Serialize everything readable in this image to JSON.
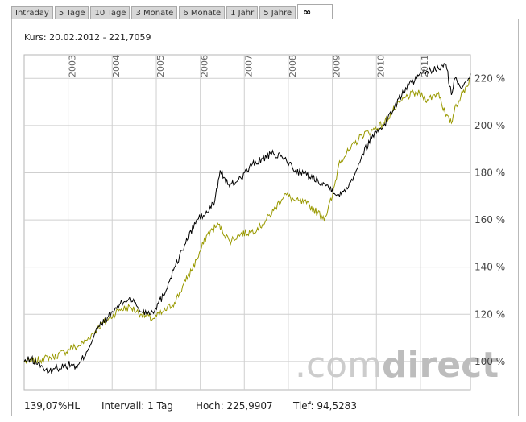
{
  "tabs": [
    {
      "label": "Intraday",
      "active": false
    },
    {
      "label": "5 Tage",
      "active": false
    },
    {
      "label": "10 Tage",
      "active": false
    },
    {
      "label": "3 Monate",
      "active": false
    },
    {
      "label": "6 Monate",
      "active": false
    },
    {
      "label": "1 Jahr",
      "active": false
    },
    {
      "label": "5 Jahre",
      "active": false
    },
    {
      "label": "∞",
      "active": true
    }
  ],
  "header": {
    "kurs": "Kurs: 20.02.2012 - 221,7059"
  },
  "footer": {
    "change": "139,07%HL",
    "interval": "Intervall: 1 Tag",
    "high": "Hoch: 225,9907",
    "low": "Tief: 94,5283"
  },
  "watermark": {
    "text_light": ".com",
    "text_dark": "direct"
  },
  "colors": {
    "series1": "#000000",
    "series2": "#999900",
    "grid": "#cfcfcf",
    "axis_text": "#444444",
    "watermark": "#cccccc"
  },
  "chart_data": {
    "type": "line",
    "x_axis": {
      "type": "date",
      "range": [
        "2002-01-01",
        "2012-02-20"
      ],
      "tick_labels": [
        "2003",
        "2004",
        "2005",
        "2006",
        "2007",
        "2008",
        "2009",
        "2010",
        "2011"
      ],
      "label_orientation": "vertical"
    },
    "y_axis": {
      "range": [
        88,
        230
      ],
      "ticks": [
        100,
        120,
        140,
        160,
        180,
        200,
        220
      ],
      "tick_labels": [
        "100 %",
        "120 %",
        "140 %",
        "160 %",
        "180 %",
        "200 %",
        "220 %"
      ],
      "position": "right"
    },
    "grid": true,
    "series": [
      {
        "color": "#000000",
        "x": [
          "2002-01-01",
          "2002-03-01",
          "2002-06-01",
          "2002-07-15",
          "2002-09-01",
          "2002-12-01",
          "2003-02-01",
          "2003-03-15",
          "2003-06-01",
          "2003-09-01",
          "2003-12-01",
          "2004-03-01",
          "2004-06-01",
          "2004-09-01",
          "2004-12-01",
          "2005-03-01",
          "2005-06-01",
          "2005-09-01",
          "2005-12-01",
          "2006-03-01",
          "2006-05-01",
          "2006-06-15",
          "2006-09-01",
          "2006-12-01",
          "2007-03-01",
          "2007-06-01",
          "2007-09-01",
          "2007-12-01",
          "2008-03-01",
          "2008-06-01",
          "2008-09-01",
          "2008-11-01",
          "2009-01-01",
          "2009-03-01",
          "2009-06-01",
          "2009-09-01",
          "2009-12-01",
          "2010-03-01",
          "2010-06-01",
          "2010-09-01",
          "2010-12-01",
          "2011-03-01",
          "2011-06-01",
          "2011-08-01",
          "2011-09-15",
          "2011-10-15",
          "2011-12-01",
          "2012-02-20"
        ],
        "values": [
          100,
          101,
          98,
          95,
          97,
          98,
          99,
          97,
          104,
          114,
          119,
          124,
          127,
          121,
          121,
          128,
          140,
          150,
          160,
          163,
          168,
          181,
          174,
          178,
          183,
          186,
          188,
          186,
          181,
          179,
          177,
          175,
          173,
          170,
          176,
          187,
          196,
          200,
          208,
          216,
          220,
          223,
          224,
          226,
          213,
          220,
          216,
          222
        ]
      },
      {
        "color": "#999900",
        "x": [
          "2002-01-01",
          "2002-03-01",
          "2002-06-01",
          "2002-09-01",
          "2002-12-01",
          "2003-02-01",
          "2003-03-15",
          "2003-06-01",
          "2003-09-01",
          "2003-12-01",
          "2004-03-01",
          "2004-06-01",
          "2004-09-01",
          "2004-12-01",
          "2005-03-01",
          "2005-06-01",
          "2005-09-01",
          "2005-12-01",
          "2006-03-01",
          "2006-06-01",
          "2006-09-01",
          "2006-12-01",
          "2007-03-01",
          "2007-06-01",
          "2007-09-01",
          "2007-12-01",
          "2008-03-01",
          "2008-06-01",
          "2008-09-01",
          "2008-11-01",
          "2009-01-01",
          "2009-03-01",
          "2009-06-01",
          "2009-09-01",
          "2009-12-01",
          "2010-03-01",
          "2010-06-01",
          "2010-09-01",
          "2010-12-01",
          "2011-03-01",
          "2011-06-01",
          "2011-08-01",
          "2011-09-15",
          "2011-10-15",
          "2011-12-01",
          "2012-02-20"
        ],
        "values": [
          100,
          100,
          101,
          102,
          104,
          106,
          106,
          109,
          114,
          118,
          122,
          123,
          120,
          118,
          121,
          125,
          134,
          143,
          154,
          158,
          151,
          154,
          155,
          158,
          164,
          171,
          168,
          167,
          163,
          161,
          170,
          185,
          190,
          196,
          198,
          201,
          207,
          212,
          214,
          211,
          214,
          204,
          201,
          208,
          212,
          220
        ]
      }
    ]
  }
}
